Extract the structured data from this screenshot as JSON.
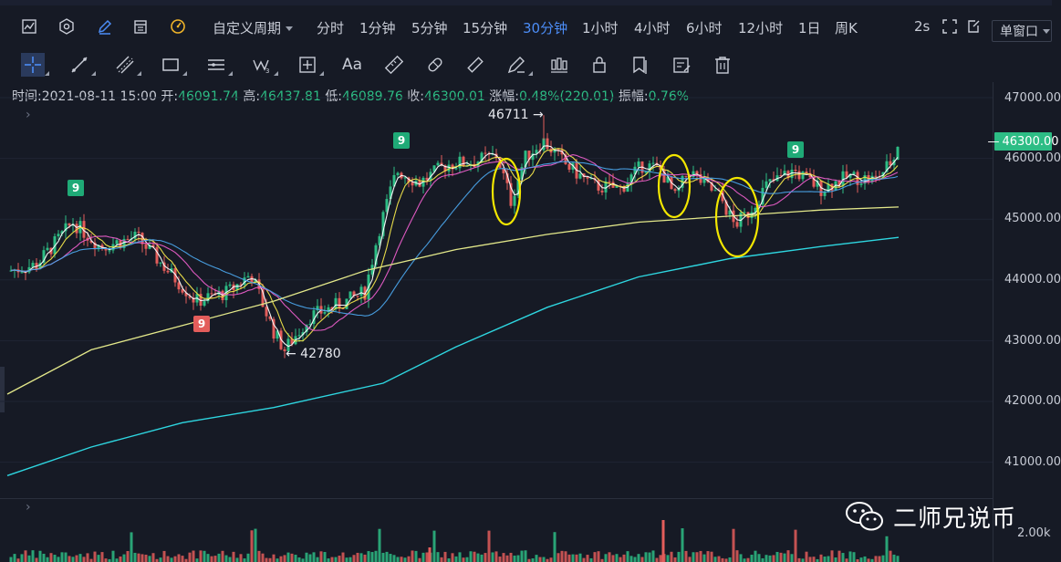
{
  "toolbar": {
    "icons": [
      "chart-type-icon",
      "settings-icon",
      "draw-icon",
      "calendar-icon",
      "indicator-icon"
    ],
    "custom_period_label": "自定义周期",
    "periods": [
      {
        "label": "分时",
        "active": false
      },
      {
        "label": "1分钟",
        "active": false
      },
      {
        "label": "5分钟",
        "active": false
      },
      {
        "label": "15分钟",
        "active": false
      },
      {
        "label": "30分钟",
        "active": true
      },
      {
        "label": "1小时",
        "active": false
      },
      {
        "label": "4小时",
        "active": false
      },
      {
        "label": "6小时",
        "active": false
      },
      {
        "label": "12小时",
        "active": false
      },
      {
        "label": "1日",
        "active": false
      },
      {
        "label": "周K",
        "active": false
      }
    ],
    "refresh_label": "2s",
    "window_select_label": "单窗口"
  },
  "draw_tools": [
    "crosshair-icon",
    "trend-line-icon",
    "parallel-channel-icon",
    "rectangle-icon",
    "horizontal-lines-icon",
    "wave-icon",
    "measure-icon",
    "text-icon",
    "ruler-icon",
    "eraser-icon",
    "pen-icon",
    "brush-icon",
    "candle-icon",
    "lock-icon",
    "copy-icon",
    "note-icon",
    "trash-icon"
  ],
  "text_tool_label": "Aa",
  "ohlc": {
    "time_label": "时间:",
    "time": "2021-08-11 15:00",
    "open_label": "开:",
    "open": "46091.74",
    "high_label": "高:",
    "high": "46437.81",
    "low_label": "低:",
    "low": "46089.76",
    "close_label": "收:",
    "close": "46300.01",
    "change_label": "涨幅:",
    "change": "0.48%(220.01)",
    "amp_label": "振幅:",
    "amp": "0.76%"
  },
  "price_axis": {
    "labels": [
      "47000.00",
      "46000.00",
      "45000.00",
      "44000.00",
      "43000.00",
      "42000.00",
      "41000.00"
    ],
    "last_price": "46300.00",
    "volume_label": "2.00k"
  },
  "annotations": {
    "high_mark": "46711 →",
    "low_mark": "← 42780",
    "signal_tags": [
      {
        "text": "9",
        "color": "green"
      },
      {
        "text": "9",
        "color": "red"
      },
      {
        "text": "9",
        "color": "green"
      },
      {
        "text": "9",
        "color": "green"
      }
    ]
  },
  "watermark": "二师兄说币",
  "chart_data": {
    "type": "candlestick",
    "interval": "30分钟",
    "ylim": [
      40600,
      47300
    ],
    "ma_colors": [
      "#ffffff",
      "#f2e64b",
      "#e85dc8",
      "#4aa3e8",
      "#e3e88a",
      "#2ed6e0"
    ],
    "up_color": "#2dbd85",
    "down_color": "#e35d5b",
    "highlight_color": "#f2e600",
    "session_high": 46711,
    "session_low": 42780,
    "last": 46300
  }
}
